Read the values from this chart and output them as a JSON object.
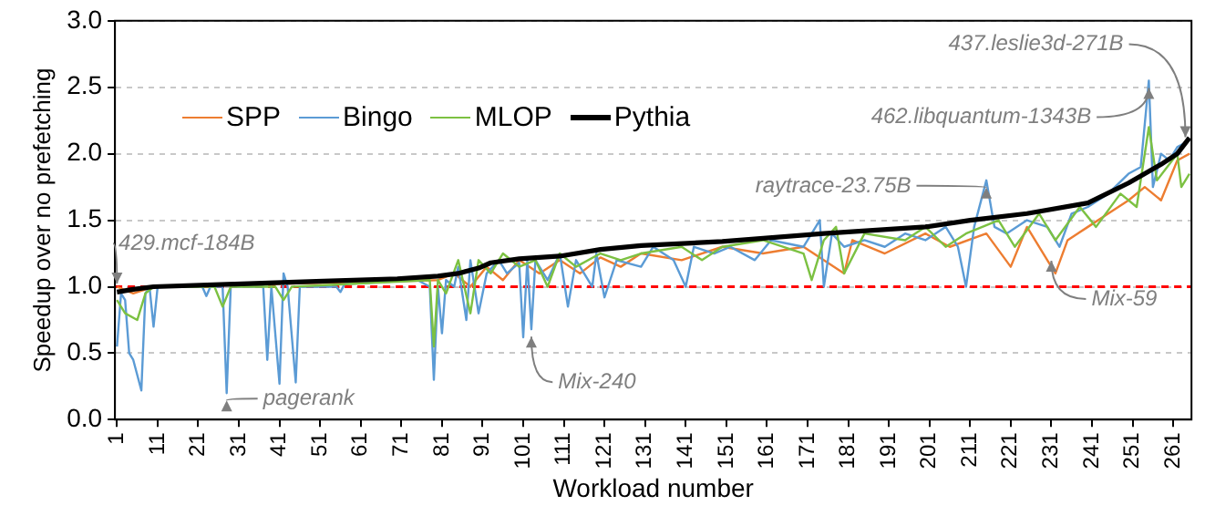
{
  "chart_data": {
    "type": "line",
    "xlabel": "Workload number",
    "ylabel": "Speedup over no prefetching",
    "xlim": [
      0.5,
      265.5
    ],
    "xticks": [
      1,
      11,
      21,
      31,
      41,
      51,
      61,
      71,
      81,
      91,
      101,
      111,
      121,
      131,
      141,
      151,
      161,
      171,
      181,
      191,
      201,
      211,
      221,
      231,
      241,
      251,
      261
    ],
    "ylim": [
      0,
      3
    ],
    "yticks": [
      {
        "value": 0,
        "label": "0.0"
      },
      {
        "value": 0.5,
        "label": "0.5"
      },
      {
        "value": 1,
        "label": "1.0"
      },
      {
        "value": 1.5,
        "label": "1.5"
      },
      {
        "value": 2,
        "label": "2.0"
      },
      {
        "value": 2.5,
        "label": "2.5"
      },
      {
        "value": 3,
        "label": "3.0"
      }
    ],
    "grid": "y",
    "legend": "top left",
    "marker": "none",
    "series": [
      {
        "name": "SPP",
        "color": "#ed7d31",
        "x": [
          1,
          5,
          10,
          80,
          84,
          88,
          92,
          96,
          100,
          105,
          110,
          115,
          120,
          125,
          130,
          140,
          150,
          160,
          170,
          180,
          182,
          190,
          200,
          206,
          215,
          221,
          225,
          232,
          235,
          240,
          245,
          250,
          254,
          258,
          262,
          265
        ],
        "values": [
          1.0,
          0.95,
          1.0,
          1.05,
          1.1,
          1.0,
          1.15,
          1.05,
          1.2,
          1.1,
          1.2,
          1.1,
          1.22,
          1.15,
          1.25,
          1.2,
          1.3,
          1.25,
          1.3,
          1.1,
          1.35,
          1.25,
          1.4,
          1.3,
          1.4,
          1.15,
          1.45,
          1.1,
          1.35,
          1.45,
          1.55,
          1.65,
          1.75,
          1.65,
          1.95,
          2.0
        ]
      },
      {
        "name": "Bingo",
        "color": "#5b9bd5",
        "x": [
          1,
          2,
          3,
          4,
          5,
          7,
          8,
          9,
          10,
          11,
          22,
          23,
          24,
          27,
          28,
          29,
          37,
          38,
          39,
          41,
          42,
          43,
          45,
          46,
          55,
          56,
          57,
          75,
          78,
          79,
          80,
          81,
          82,
          84,
          85,
          87,
          88,
          90,
          92,
          95,
          97,
          100,
          101,
          102,
          103,
          104,
          107,
          110,
          112,
          114,
          118,
          119,
          121,
          124,
          130,
          133,
          138,
          141,
          143,
          148,
          152,
          158,
          162,
          170,
          174,
          175,
          177,
          180,
          185,
          190,
          195,
          200,
          205,
          208,
          210,
          212,
          215,
          217,
          220,
          225,
          230,
          233,
          236,
          240,
          245,
          250,
          253,
          255,
          256,
          258,
          260,
          262,
          265
        ],
        "values": [
          0.55,
          0.95,
          0.9,
          0.5,
          0.45,
          0.22,
          0.95,
          1.0,
          0.7,
          1.0,
          1.0,
          0.93,
          1.0,
          1.0,
          0.2,
          1.0,
          1.0,
          0.45,
          1.0,
          0.27,
          1.1,
          1.0,
          0.28,
          1.0,
          1.0,
          0.96,
          1.02,
          1.05,
          1.0,
          0.3,
          1.0,
          0.65,
          1.05,
          1.0,
          1.15,
          0.75,
          1.2,
          0.8,
          1.1,
          1.2,
          1.1,
          1.18,
          0.62,
          1.2,
          0.68,
          1.2,
          1.05,
          1.25,
          0.85,
          1.2,
          1.0,
          1.25,
          0.92,
          1.2,
          1.15,
          1.3,
          1.2,
          1.0,
          1.3,
          1.25,
          1.3,
          1.2,
          1.35,
          1.3,
          1.5,
          1.0,
          1.4,
          1.3,
          1.35,
          1.3,
          1.4,
          1.35,
          1.45,
          1.3,
          1.0,
          1.45,
          1.8,
          1.45,
          1.4,
          1.5,
          1.45,
          1.3,
          1.55,
          1.6,
          1.7,
          1.85,
          1.9,
          2.55,
          1.75,
          2.0,
          1.95,
          2.05,
          2.1
        ]
      },
      {
        "name": "MLOP",
        "color": "#7cc142",
        "x": [
          1,
          3,
          6,
          8,
          10,
          25,
          27,
          29,
          40,
          42,
          44,
          78,
          79,
          80,
          82,
          85,
          88,
          90,
          93,
          96,
          100,
          104,
          107,
          110,
          114,
          120,
          125,
          130,
          140,
          145,
          150,
          160,
          170,
          172,
          175,
          178,
          180,
          185,
          195,
          200,
          205,
          210,
          218,
          222,
          228,
          232,
          238,
          242,
          248,
          252,
          255,
          257,
          262,
          263,
          265
        ],
        "values": [
          0.9,
          0.8,
          0.75,
          0.95,
          1.0,
          1.0,
          0.85,
          1.0,
          1.0,
          0.9,
          1.0,
          1.05,
          0.55,
          1.05,
          0.95,
          1.2,
          0.8,
          1.2,
          1.1,
          1.25,
          1.15,
          1.2,
          1.0,
          1.25,
          1.15,
          1.25,
          1.2,
          1.25,
          1.3,
          1.2,
          1.3,
          1.35,
          1.25,
          1.05,
          1.35,
          1.45,
          1.1,
          1.4,
          1.35,
          1.45,
          1.3,
          1.4,
          1.5,
          1.3,
          1.55,
          1.35,
          1.6,
          1.45,
          1.7,
          1.6,
          2.2,
          1.8,
          2.0,
          1.75,
          1.85
        ]
      },
      {
        "name": "Pythia",
        "color": "#000000",
        "x": [
          1,
          5,
          10,
          30,
          50,
          70,
          80,
          85,
          90,
          93,
          100,
          110,
          120,
          130,
          150,
          175,
          200,
          211,
          225,
          240,
          250,
          258,
          262,
          265
        ],
        "values": [
          0.96,
          0.98,
          1.0,
          1.02,
          1.04,
          1.06,
          1.08,
          1.1,
          1.14,
          1.18,
          1.21,
          1.23,
          1.28,
          1.31,
          1.34,
          1.4,
          1.45,
          1.5,
          1.55,
          1.63,
          1.78,
          1.92,
          2.0,
          2.12
        ]
      }
    ],
    "ref_lines": [
      {
        "axis": "y",
        "value": 1,
        "color": "#ff0000",
        "line_style": "dashed"
      }
    ],
    "annotations": [
      {
        "text": "429.mcf-184B",
        "x": 1,
        "y": 0.97
      },
      {
        "text": "pagerank",
        "x": 28,
        "y": 0.2
      },
      {
        "text": "Mix-240",
        "x": 103,
        "y": 0.68
      },
      {
        "text": "raytrace-23.75B",
        "x": 215,
        "y": 1.8
      },
      {
        "text": "Mix-59",
        "x": 231,
        "y": 1.25
      },
      {
        "text": "462.libquantum-1343B",
        "x": 255,
        "y": 2.55
      },
      {
        "text": "437.leslie3d-271B",
        "x": 264,
        "y": 2.07
      }
    ]
  }
}
